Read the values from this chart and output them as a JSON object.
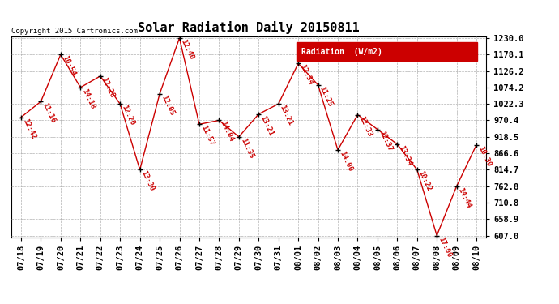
{
  "title": "Solar Radiation Daily 20150811",
  "copyright": "Copyright 2015 Cartronics.com",
  "legend_label": "Radiation  (W/m2)",
  "dates": [
    "07/18",
    "07/19",
    "07/20",
    "07/21",
    "07/22",
    "07/23",
    "07/24",
    "07/25",
    "07/26",
    "07/27",
    "07/28",
    "07/29",
    "07/30",
    "07/31",
    "08/01",
    "08/02",
    "08/03",
    "08/04",
    "08/05",
    "08/06",
    "08/07",
    "08/08",
    "08/09",
    "08/10"
  ],
  "values": [
    980.0,
    1030.0,
    1178.1,
    1074.2,
    1110.0,
    1022.3,
    814.7,
    1054.0,
    1230.0,
    958.0,
    970.4,
    918.5,
    990.0,
    1022.3,
    1150.0,
    1082.0,
    877.0,
    988.0,
    942.0,
    895.0,
    814.7,
    607.0,
    762.8,
    893.0
  ],
  "labels": [
    "12:42",
    "11:16",
    "10:54",
    "14:18",
    "12:28",
    "12:20",
    "13:30",
    "12:05",
    "12:40",
    "11:57",
    "14:04",
    "11:35",
    "13:21",
    "13:21",
    "12:34",
    "11:25",
    "14:00",
    "12:33",
    "12:37",
    "13:34",
    "10:22",
    "17:00",
    "14:44",
    "10:30"
  ],
  "ylim_min": 607.0,
  "ylim_max": 1230.0,
  "ytick_values": [
    607.0,
    658.9,
    710.8,
    762.8,
    814.7,
    866.6,
    918.5,
    970.4,
    1022.3,
    1074.2,
    1126.2,
    1178.1,
    1230.0
  ],
  "ytick_labels": [
    "607.0",
    "658.9",
    "710.8",
    "762.8",
    "814.7",
    "866.6",
    "918.5",
    "970.4",
    "1022.3",
    "1074.2",
    "1126.2",
    "1178.1",
    "1230.0"
  ],
  "line_color": "#cc0000",
  "label_color": "#cc0000",
  "bg_color": "#ffffff",
  "grid_color": "#aaaaaa",
  "title_fontsize": 11,
  "label_fontsize": 6.5,
  "tick_fontsize": 7.5,
  "legend_bg": "#cc0000",
  "legend_text_color": "#ffffff",
  "fig_width": 6.9,
  "fig_height": 3.75,
  "dpi": 100
}
